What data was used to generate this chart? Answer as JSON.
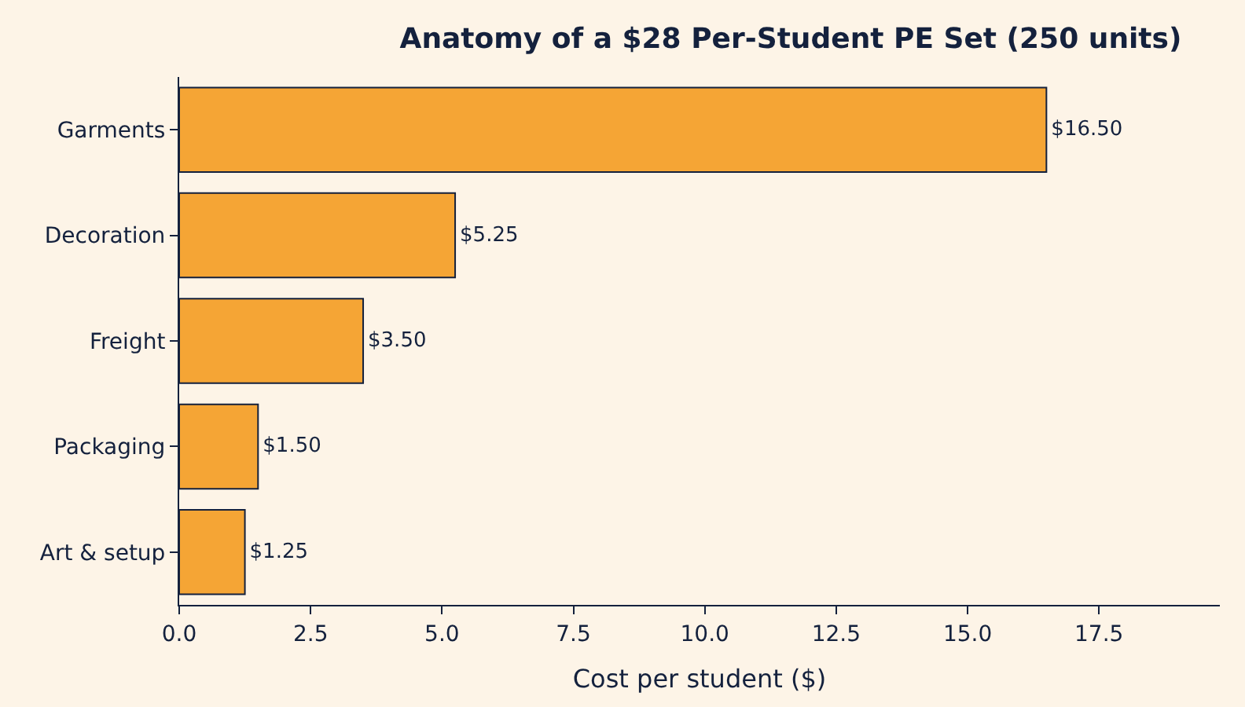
{
  "chart_data": {
    "type": "bar",
    "orientation": "horizontal",
    "title": "Anatomy of a $28 Per-Student PE Set (250 units)",
    "xlabel": "Cost per student ($)",
    "categories": [
      "Garments",
      "Decoration",
      "Freight",
      "Packaging",
      "Art & setup"
    ],
    "values": [
      16.5,
      5.25,
      3.5,
      1.5,
      1.25
    ],
    "value_labels": [
      "$16.50",
      "$5.25",
      "$3.50",
      "$1.50",
      "$1.25"
    ],
    "color": "#f5a535",
    "xlim": [
      0,
      19.8
    ],
    "xticks": [
      {
        "value": 0,
        "label": "0.0"
      },
      {
        "value": 2.5,
        "label": "2.5"
      },
      {
        "value": 5,
        "label": "5.0"
      },
      {
        "value": 7.5,
        "label": "7.5"
      },
      {
        "value": 10,
        "label": "10.0"
      },
      {
        "value": 12.5,
        "label": "12.5"
      },
      {
        "value": 15,
        "label": "15.0"
      },
      {
        "value": 17.5,
        "label": "17.5"
      }
    ],
    "grid": false,
    "legend": false
  }
}
